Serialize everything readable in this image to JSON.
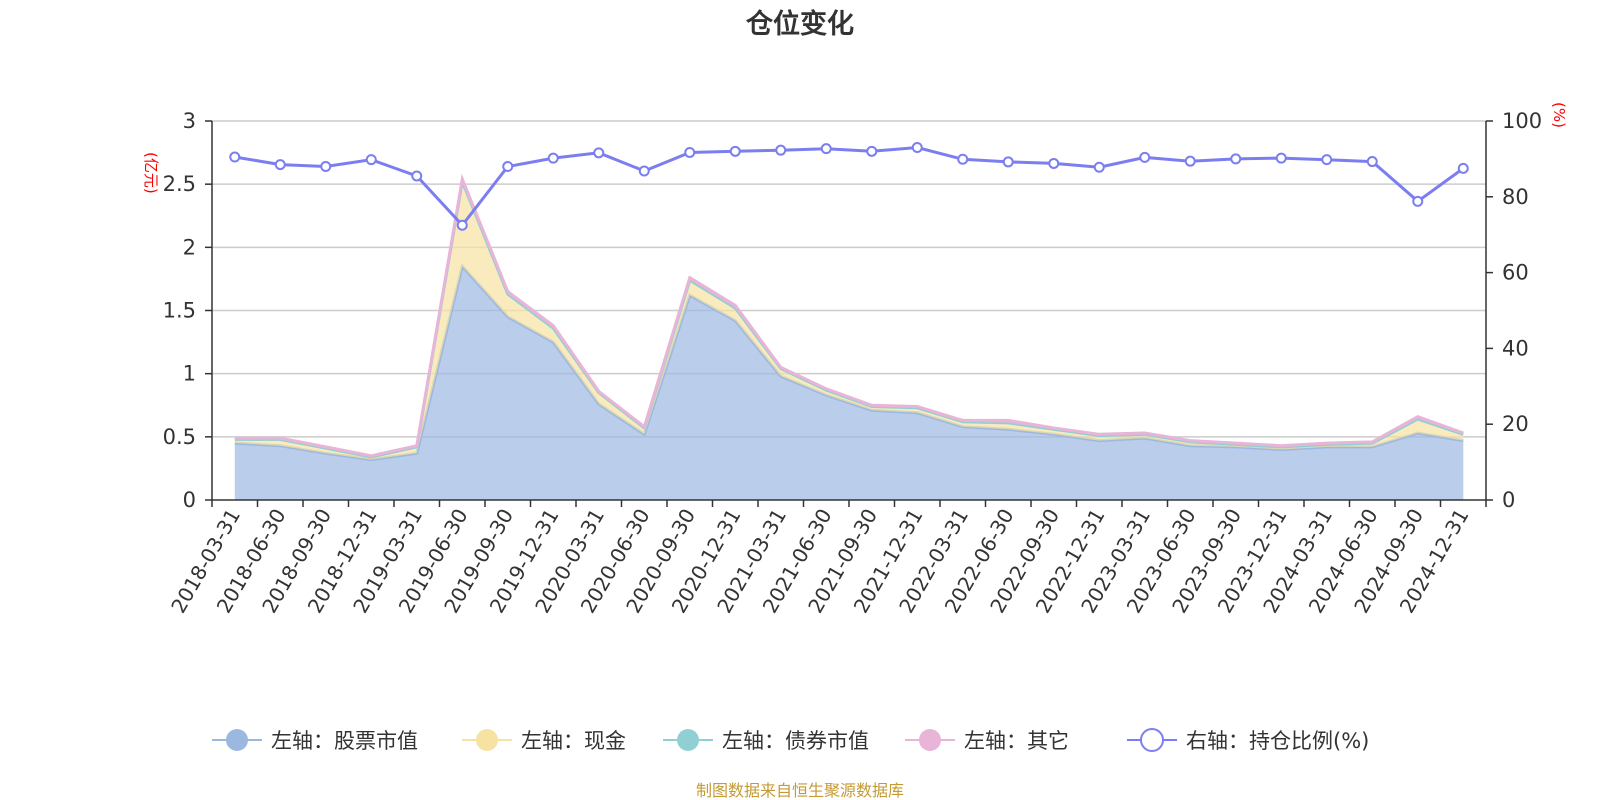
{
  "chart_data": {
    "type": "area",
    "title": "仓位变化",
    "source": "制图数据来自恒生聚源数据库",
    "left_axis_unit": "(亿元)",
    "right_axis_unit": "(%)",
    "left_ylim": [
      0,
      3
    ],
    "left_ticks": [
      "0",
      "0.5",
      "1",
      "1.5",
      "2",
      "2.5",
      "3"
    ],
    "right_ylim": [
      0,
      100
    ],
    "right_ticks": [
      "0",
      "20",
      "40",
      "60",
      "80",
      "100"
    ],
    "categories": [
      "2018-03-31",
      "2018-06-30",
      "2018-09-30",
      "2018-12-31",
      "2019-03-31",
      "2019-06-30",
      "2019-09-30",
      "2019-12-31",
      "2020-03-31",
      "2020-06-30",
      "2020-09-30",
      "2020-12-31",
      "2021-03-31",
      "2021-06-30",
      "2021-09-30",
      "2021-12-31",
      "2022-03-31",
      "2022-06-30",
      "2022-09-30",
      "2022-12-31",
      "2023-03-31",
      "2023-06-30",
      "2023-09-30",
      "2023-12-31",
      "2024-03-31",
      "2024-06-30",
      "2024-09-30",
      "2024-12-31"
    ],
    "series": [
      {
        "name": "左轴：股票市值",
        "axis": "left",
        "color": "#9cb8e1",
        "values": [
          0.45,
          0.43,
          0.37,
          0.32,
          0.37,
          1.85,
          1.45,
          1.25,
          0.76,
          0.52,
          1.62,
          1.42,
          0.98,
          0.83,
          0.71,
          0.69,
          0.58,
          0.56,
          0.52,
          0.47,
          0.49,
          0.43,
          0.42,
          0.4,
          0.42,
          0.42,
          0.53,
          0.47
        ]
      },
      {
        "name": "左轴：现金",
        "axis": "left",
        "color": "#f7e3a1",
        "values": [
          0.03,
          0.05,
          0.04,
          0.02,
          0.05,
          0.67,
          0.18,
          0.11,
          0.09,
          0.05,
          0.12,
          0.1,
          0.06,
          0.04,
          0.03,
          0.04,
          0.04,
          0.05,
          0.04,
          0.04,
          0.03,
          0.03,
          0.02,
          0.02,
          0.02,
          0.03,
          0.11,
          0.05
        ]
      },
      {
        "name": "左轴：债券市值",
        "axis": "left",
        "color": "#90d0d4",
        "values": [
          0,
          0,
          0,
          0,
          0,
          0,
          0,
          0,
          0,
          0,
          0,
          0,
          0,
          0,
          0,
          0,
          0,
          0,
          0,
          0,
          0,
          0,
          0,
          0,
          0,
          0,
          0,
          0
        ]
      },
      {
        "name": "左轴：其它",
        "axis": "left",
        "color": "#e8b4d8",
        "values": [
          0.01,
          0.01,
          0.01,
          0.01,
          0.01,
          0.02,
          0.02,
          0.02,
          0.01,
          0.01,
          0.02,
          0.02,
          0.01,
          0.01,
          0.01,
          0.01,
          0.01,
          0.02,
          0.01,
          0.01,
          0.01,
          0.01,
          0.01,
          0.01,
          0.01,
          0.01,
          0.02,
          0.01
        ]
      },
      {
        "name": "右轴：持仓比例(%)",
        "axis": "right",
        "color": "#7b7ef0",
        "values": [
          90.5,
          88.5,
          88.0,
          89.8,
          85.5,
          72.5,
          88.0,
          90.2,
          91.6,
          86.8,
          91.7,
          92.0,
          92.3,
          92.7,
          92.0,
          93.0,
          89.9,
          89.2,
          88.8,
          87.8,
          90.4,
          89.4,
          90.0,
          90.2,
          89.8,
          89.3,
          78.8,
          87.5
        ]
      }
    ]
  }
}
